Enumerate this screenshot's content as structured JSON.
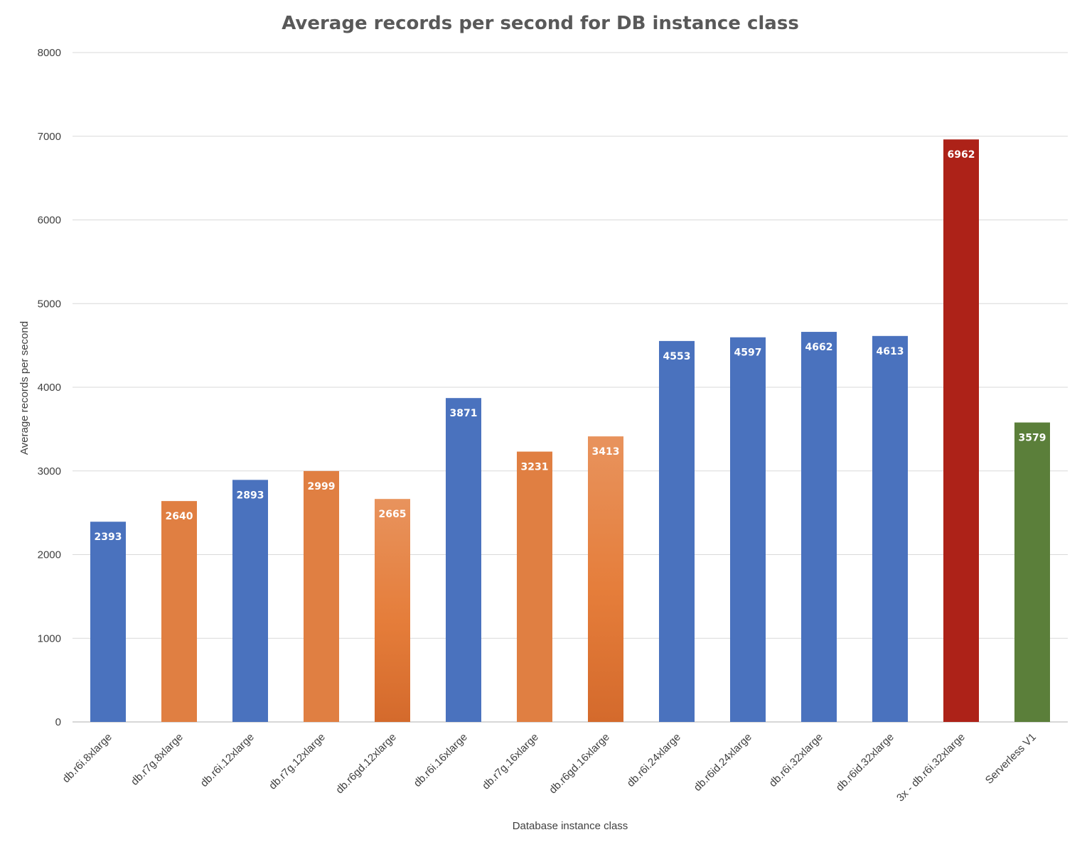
{
  "chart_data": {
    "type": "bar",
    "title": "Average records per second for DB instance class",
    "xlabel": "Database instance class",
    "ylabel": "Average records per second",
    "ylim": [
      0,
      8000
    ],
    "yticks": [
      0,
      1000,
      2000,
      3000,
      4000,
      5000,
      6000,
      7000,
      8000
    ],
    "grid": true,
    "legend": "none",
    "categories": [
      "db.r6i.8xlarge",
      "db.r7g.8xlarge",
      "db.r6i.12xlarge",
      "db.r7g.12xlarge",
      "db.r6gd.12xlarge",
      "db.r6i.16xlarge",
      "db.r7g.16xlarge",
      "db.r6gd.16xlarge",
      "db.r6i.24xlarge",
      "db.r6id.24xlarge",
      "db.r6i.32xlarge",
      "db.r6id.32xlarge",
      "3x - db.r6i.32xlarge",
      "Serverless V1"
    ],
    "values": [
      2393,
      2640,
      2893,
      2999,
      2665,
      3871,
      3231,
      3413,
      4553,
      4597,
      4662,
      4613,
      6962,
      3579
    ],
    "data_labels": [
      "2393",
      "2640",
      "2893",
      "2999",
      "2665",
      "3871",
      "3231",
      "3413",
      "4553",
      "4597",
      "4662",
      "4613",
      "6962",
      "3579"
    ],
    "bar_colors": [
      "#4a72be",
      "#e07f42",
      "#4a72be",
      "#e07f42",
      "#e07f42",
      "#4a72be",
      "#e07f42",
      "#e07f42",
      "#4a72be",
      "#4a72be",
      "#4a72be",
      "#4a72be",
      "#ad2218",
      "#5b7f3a"
    ],
    "gradient_bars": [
      4,
      7
    ]
  }
}
